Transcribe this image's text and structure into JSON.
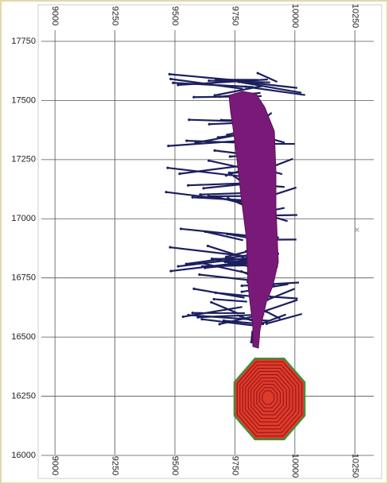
{
  "chart_data": {
    "type": "plan",
    "xlim": [
      8930,
      10355
    ],
    "ylim": [
      15916,
      17891
    ],
    "xticks": [
      9000,
      9250,
      9500,
      9750,
      10000,
      10250
    ],
    "yticks": [
      16000,
      16250,
      16500,
      16750,
      17000,
      17250,
      17500,
      17750
    ],
    "grid": true
  }
}
